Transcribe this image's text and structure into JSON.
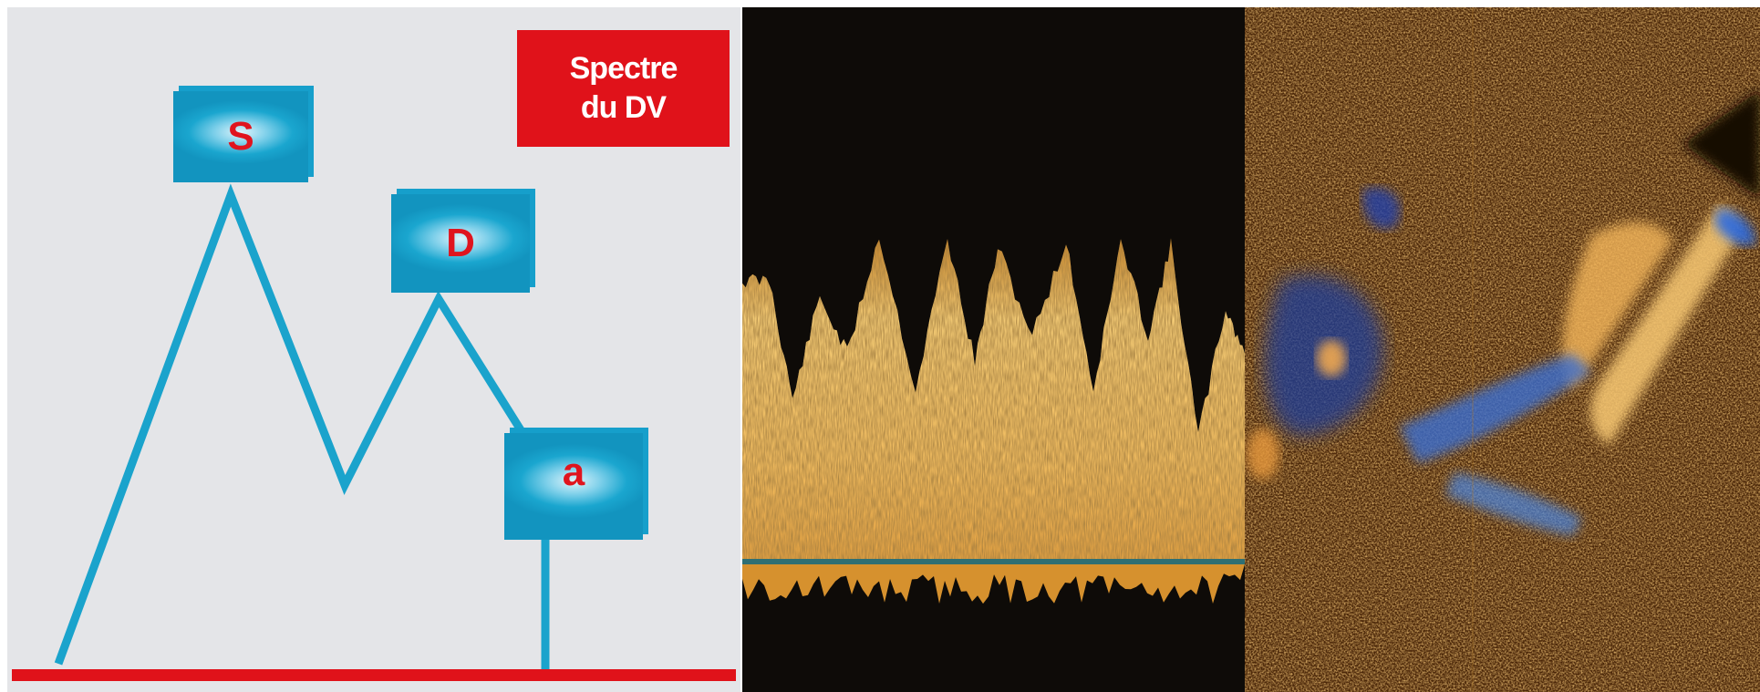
{
  "diagram": {
    "title_line1": "Spectre",
    "title_line2": "du DV",
    "peaks": {
      "s": "S",
      "d": "D",
      "a": "a"
    }
  },
  "colors": {
    "background": "#e4e5e8",
    "waveform": "#1aa3cc",
    "baseline": "#e0121a",
    "label_box": "#1aa6cf",
    "label_text": "#e0141e",
    "title_box": "#e0121a",
    "doppler_spectrum": "#f6c465",
    "echo_background": "#3a1e08"
  }
}
